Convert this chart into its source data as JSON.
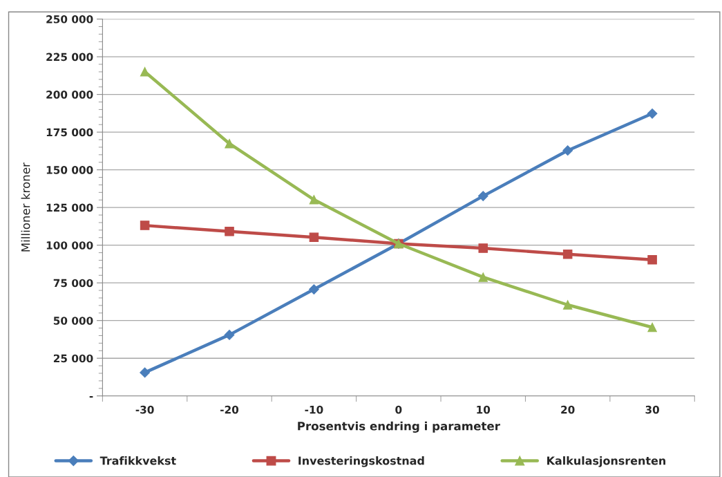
{
  "chart_data": {
    "type": "line",
    "xlabel": "Prosentvis endring i parameter",
    "ylabel": "Millioner kroner",
    "categories": [
      "-30",
      "-20",
      "-10",
      "0",
      "10",
      "20",
      "30"
    ],
    "series": [
      {
        "name": "Trafikkvekst",
        "color": "#4a7ebb",
        "marker": "diamond",
        "values": [
          15500,
          40500,
          70700,
          101000,
          132600,
          162800,
          187300
        ]
      },
      {
        "name": "Investeringskostnad",
        "color": "#be4b48",
        "marker": "square",
        "values": [
          113100,
          109100,
          105200,
          101000,
          98000,
          94000,
          90300
        ]
      },
      {
        "name": "Kalkulasjonsrenten",
        "color": "#98b954",
        "marker": "triangle",
        "values": [
          215100,
          167400,
          130200,
          101000,
          78800,
          60400,
          45500
        ]
      }
    ],
    "ylim": [
      0,
      250000
    ],
    "yticks": [
      {
        "value": 0,
        "label": "-"
      },
      {
        "value": 25000,
        "label": "25 000"
      },
      {
        "value": 50000,
        "label": "50 000"
      },
      {
        "value": 75000,
        "label": "75 000"
      },
      {
        "value": 100000,
        "label": "100 000"
      },
      {
        "value": 125000,
        "label": "125 000"
      },
      {
        "value": 150000,
        "label": "150 000"
      },
      {
        "value": 175000,
        "label": "175 000"
      },
      {
        "value": 200000,
        "label": "200 000"
      },
      {
        "value": 225000,
        "label": "225 000"
      },
      {
        "value": 250000,
        "label": "250 000"
      }
    ],
    "grid": "y",
    "legend": "bottom",
    "line_style": "solid"
  }
}
